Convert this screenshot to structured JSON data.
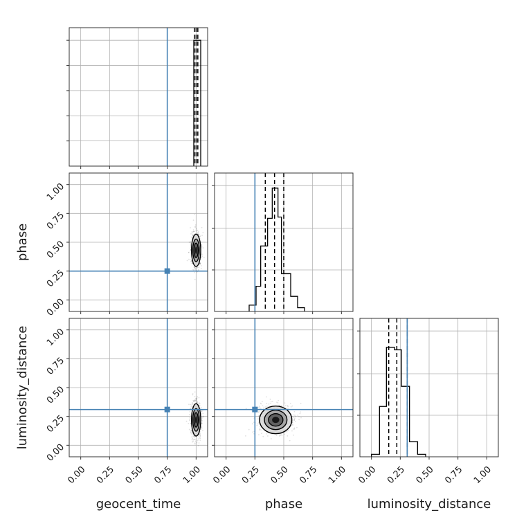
{
  "chart_data": {
    "type": "corner",
    "parameters": [
      "geocent_time",
      "phase",
      "luminosity_distance"
    ],
    "tick_values": [
      0.0,
      0.25,
      0.5,
      0.75,
      1.0
    ],
    "tick_labels": [
      "0.00",
      "0.25",
      "0.50",
      "0.75",
      "1.00"
    ],
    "axis_range": [
      -0.1,
      1.1
    ],
    "grid": true,
    "truths": {
      "geocent_time": 0.75,
      "phase": 0.25,
      "luminosity_distance": 0.31
    },
    "truth_color": "#4682b4",
    "histograms": {
      "geocent_time": {
        "bins": [
          [
            0.98,
            1.04,
            1.0
          ]
        ],
        "quantiles": [
          0.985,
          1.0,
          1.015
        ]
      },
      "phase": {
        "bins": [
          [
            0.2,
            0.26,
            0.05
          ],
          [
            0.26,
            0.3,
            0.2
          ],
          [
            0.3,
            0.36,
            0.52
          ],
          [
            0.36,
            0.4,
            0.74
          ],
          [
            0.4,
            0.45,
            0.98
          ],
          [
            0.45,
            0.48,
            0.75
          ],
          [
            0.48,
            0.56,
            0.3
          ],
          [
            0.56,
            0.62,
            0.12
          ],
          [
            0.62,
            0.68,
            0.03
          ]
        ],
        "quantiles": [
          0.34,
          0.42,
          0.5
        ]
      },
      "luminosity_distance": {
        "bins": [
          [
            0.0,
            0.07,
            0.02
          ],
          [
            0.07,
            0.13,
            0.4
          ],
          [
            0.13,
            0.2,
            0.87
          ],
          [
            0.2,
            0.26,
            0.85
          ],
          [
            0.26,
            0.33,
            0.56
          ],
          [
            0.33,
            0.4,
            0.12
          ],
          [
            0.4,
            0.47,
            0.02
          ]
        ],
        "quantiles": [
          0.15,
          0.22,
          0.31
        ]
      }
    },
    "densities": {
      "phase_vs_geocent_time": {
        "x": 1.0,
        "y": 0.43,
        "sx": 0.02,
        "sy": 0.07
      },
      "luminosity_distance_vs_geocent_time": {
        "x": 1.0,
        "y": 0.22,
        "sx": 0.02,
        "sy": 0.07
      },
      "luminosity_distance_vs_phase": {
        "x": 0.43,
        "y": 0.22,
        "sx": 0.07,
        "sy": 0.06
      }
    }
  }
}
